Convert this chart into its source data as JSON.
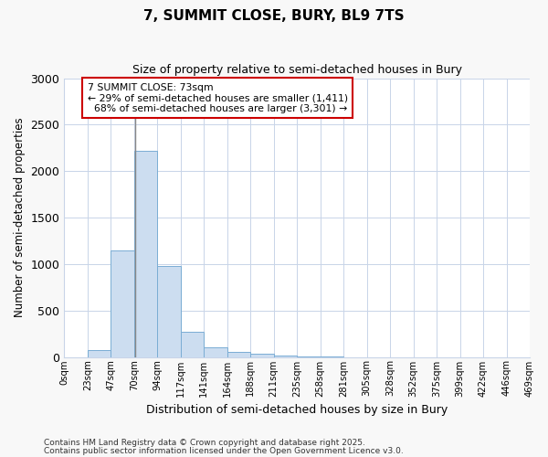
{
  "title": "7, SUMMIT CLOSE, BURY, BL9 7TS",
  "subtitle": "Size of property relative to semi-detached houses in Bury",
  "xlabel": "Distribution of semi-detached houses by size in Bury",
  "ylabel": "Number of semi-detached properties",
  "footnote1": "Contains HM Land Registry data © Crown copyright and database right 2025.",
  "footnote2": "Contains public sector information licensed under the Open Government Licence v3.0.",
  "bin_labels": [
    "0sqm",
    "23sqm",
    "47sqm",
    "70sqm",
    "94sqm",
    "117sqm",
    "141sqm",
    "164sqm",
    "188sqm",
    "211sqm",
    "235sqm",
    "258sqm",
    "281sqm",
    "305sqm",
    "328sqm",
    "352sqm",
    "375sqm",
    "399sqm",
    "422sqm",
    "446sqm",
    "469sqm"
  ],
  "bar_values": [
    0,
    75,
    1150,
    2220,
    975,
    270,
    105,
    55,
    30,
    15,
    5,
    5,
    0,
    0,
    0,
    0,
    0,
    0,
    0,
    0
  ],
  "bar_color": "#ccddf0",
  "bar_edge_color": "#7aadd4",
  "property_label": "7 SUMMIT CLOSE: 73sqm",
  "pct_smaller": 29,
  "pct_larger": 68,
  "n_smaller": 1411,
  "n_larger": 3301,
  "vline_x": 70,
  "vline_color": "#888888",
  "annotation_box_color": "#cc0000",
  "ylim": [
    0,
    3000
  ],
  "yticks": [
    0,
    500,
    1000,
    1500,
    2000,
    2500,
    3000
  ],
  "grid_color": "#c8d4e8",
  "background_color": "#ffffff",
  "plot_bg_color": "#ffffff",
  "fig_bg_color": "#f8f8f8"
}
